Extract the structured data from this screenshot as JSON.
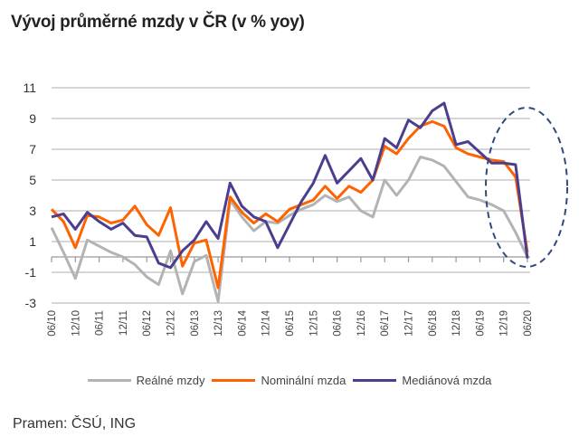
{
  "chart_data": {
    "type": "line",
    "title": "Vývoj průměrné mzdy v ČR (v % yoy)",
    "xlabel": "",
    "ylabel": "",
    "ylim": [
      -3,
      11
    ],
    "yticks": [
      11,
      9,
      7,
      5,
      3,
      1,
      -1,
      -3
    ],
    "grid": true,
    "legend_position": "bottom",
    "x_tick_labels": [
      "06/10",
      "12/10",
      "06/11",
      "12/11",
      "06/12",
      "12/12",
      "06/13",
      "12/13",
      "06/14",
      "12/14",
      "06/15",
      "12/15",
      "06/16",
      "12/16",
      "06/17",
      "12/17",
      "06/18",
      "12/18",
      "06/19",
      "12/19",
      "06/20"
    ],
    "x_frequency": "quarterly, 06/2010 to 06/2020",
    "series": [
      {
        "name": "Reálné mzdy",
        "color": "#b3b3b3",
        "values": [
          1.9,
          0.3,
          -1.4,
          1.1,
          0.7,
          0.3,
          0.0,
          -0.5,
          -1.3,
          -1.8,
          0.4,
          -2.4,
          -0.3,
          0.1,
          -2.9,
          3.7,
          2.6,
          1.7,
          2.3,
          2.2,
          2.7,
          3.1,
          3.4,
          4.0,
          3.6,
          3.9,
          3.0,
          2.6,
          5.0,
          4.0,
          5.0,
          6.5,
          6.3,
          5.9,
          4.9,
          3.9,
          3.7,
          3.4,
          3.0,
          1.6,
          0.0
        ]
      },
      {
        "name": "Nominální mzda",
        "color": "#ff6200",
        "values": [
          3.1,
          2.3,
          0.6,
          2.7,
          2.6,
          2.2,
          2.4,
          3.3,
          2.1,
          1.4,
          3.2,
          -0.6,
          0.9,
          1.1,
          -2.0,
          3.9,
          2.9,
          2.2,
          2.8,
          2.3,
          3.1,
          3.4,
          3.7,
          4.6,
          3.8,
          4.6,
          4.2,
          5.0,
          7.2,
          6.7,
          7.7,
          8.5,
          8.8,
          8.5,
          7.1,
          6.7,
          6.5,
          6.3,
          6.2,
          5.2,
          0.3
        ]
      },
      {
        "name": "Mediánová mzda",
        "color": "#4a3f8f",
        "values": [
          2.6,
          2.8,
          1.8,
          2.9,
          2.3,
          1.8,
          2.2,
          1.4,
          1.3,
          -0.4,
          -0.7,
          0.4,
          1.1,
          2.3,
          1.2,
          4.8,
          3.3,
          2.6,
          2.3,
          0.6,
          2.1,
          3.6,
          4.8,
          6.6,
          4.8,
          5.6,
          6.4,
          5.0,
          7.7,
          7.1,
          8.9,
          8.4,
          9.5,
          10.0,
          7.3,
          7.5,
          6.8,
          6.1,
          6.1,
          6.0,
          -0.1
        ]
      }
    ],
    "annotation": "dashed ellipse highlighting 2019–2020 drop"
  },
  "source": "Pramen: ČSÚ, ING"
}
